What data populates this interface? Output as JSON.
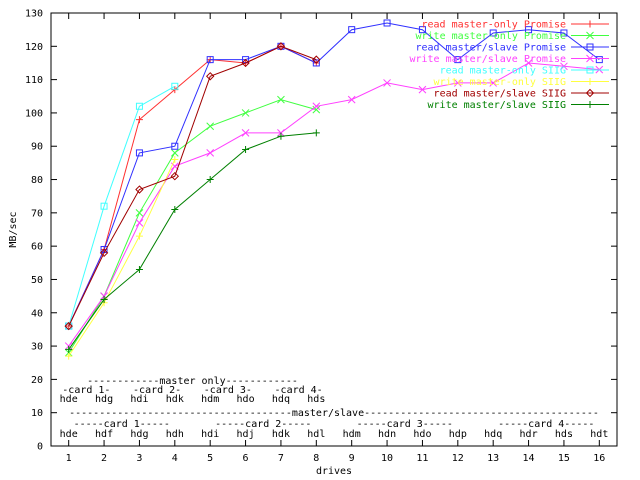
{
  "chart_data": {
    "type": "line",
    "title": "",
    "xlabel": "drives",
    "ylabel": "MB/sec",
    "xlim": [
      0.5,
      16.5
    ],
    "ylim": [
      0,
      130
    ],
    "xticks": [
      1,
      2,
      3,
      4,
      5,
      6,
      7,
      8,
      9,
      10,
      11,
      12,
      13,
      14,
      15,
      16
    ],
    "yticks": [
      0,
      10,
      20,
      30,
      40,
      50,
      60,
      70,
      80,
      90,
      100,
      110,
      120,
      130
    ],
    "grid": false,
    "legend_position": "top-right",
    "series": [
      {
        "name": "read master-only Promise",
        "color": "#ff3030",
        "marker": "plus",
        "x": [
          1,
          2,
          3,
          4,
          5,
          6,
          7,
          8
        ],
        "y": [
          36,
          59,
          98,
          107,
          116,
          115,
          120,
          115
        ]
      },
      {
        "name": "write master-only Promise",
        "color": "#40ff40",
        "marker": "cross",
        "x": [
          1,
          2,
          3,
          4,
          5,
          6,
          7,
          8
        ],
        "y": [
          28,
          45,
          70,
          88,
          96,
          100,
          104,
          101
        ]
      },
      {
        "name": "read master/slave Promise",
        "color": "#3030ff",
        "marker": "box",
        "x": [
          1,
          2,
          3,
          4,
          5,
          6,
          7,
          8,
          9,
          10,
          11,
          12,
          13,
          14,
          15,
          16
        ],
        "y": [
          36,
          59,
          88,
          90,
          116,
          116,
          120,
          115,
          125,
          127,
          125,
          116,
          124,
          125,
          124,
          116
        ]
      },
      {
        "name": "write master/slave Promise",
        "color": "#ff40ff",
        "marker": "cross",
        "x": [
          1,
          2,
          3,
          4,
          5,
          6,
          7,
          8,
          9,
          10,
          11,
          12,
          13,
          14,
          15,
          16
        ],
        "y": [
          30,
          45,
          67,
          84,
          88,
          94,
          94,
          102,
          104,
          109,
          107,
          109,
          109,
          115,
          114,
          113
        ]
      },
      {
        "name": "read master-only SIIG",
        "color": "#40ffff",
        "marker": "box",
        "x": [
          1,
          2,
          3,
          4
        ],
        "y": [
          36,
          72,
          102,
          108
        ]
      },
      {
        "name": "write master-only SIIG",
        "color": "#ffff40",
        "marker": "plus",
        "x": [
          1,
          2,
          3,
          4
        ],
        "y": [
          27,
          43,
          63,
          86
        ]
      },
      {
        "name": "read master/slave SIIG",
        "color": "#a00000",
        "marker": "diamond",
        "x": [
          1,
          2,
          3,
          4,
          5,
          6,
          7,
          8
        ],
        "y": [
          36,
          58,
          77,
          81,
          111,
          115,
          120,
          116
        ]
      },
      {
        "name": "write master/slave SIIG",
        "color": "#008000",
        "marker": "plus",
        "x": [
          1,
          2,
          3,
          4,
          5,
          6,
          7,
          8
        ],
        "y": [
          29,
          44,
          53,
          71,
          80,
          89,
          93,
          94
        ]
      }
    ],
    "annotations": {
      "master_only": {
        "header": "------------master only------------",
        "cards": [
          {
            "label": "-card 1-",
            "x": 1.5
          },
          {
            "label": "-card 2-",
            "x": 3.5
          },
          {
            "label": "-card 3-",
            "x": 5.5
          },
          {
            "label": "-card 4-",
            "x": 7.5
          }
        ],
        "drives": [
          "hde",
          "hdg",
          "hdi",
          "hdk",
          "hdm",
          "hdo",
          "hdq",
          "hds"
        ]
      },
      "master_slave": {
        "header": "-------------------------------------master/slave---------------------------------------",
        "cards": [
          {
            "label": "-----card 1-----",
            "x": 2.5
          },
          {
            "label": "-----card 2-----",
            "x": 6.5
          },
          {
            "label": "-----card 3-----",
            "x": 10.5
          },
          {
            "label": "-----card 4-----",
            "x": 14.5
          }
        ],
        "drives": [
          "hde",
          "hdf",
          "hdg",
          "hdh",
          "hdi",
          "hdj",
          "hdk",
          "hdl",
          "hdm",
          "hdn",
          "hdo",
          "hdp",
          "hdq",
          "hdr",
          "hds",
          "hdt"
        ]
      }
    }
  }
}
